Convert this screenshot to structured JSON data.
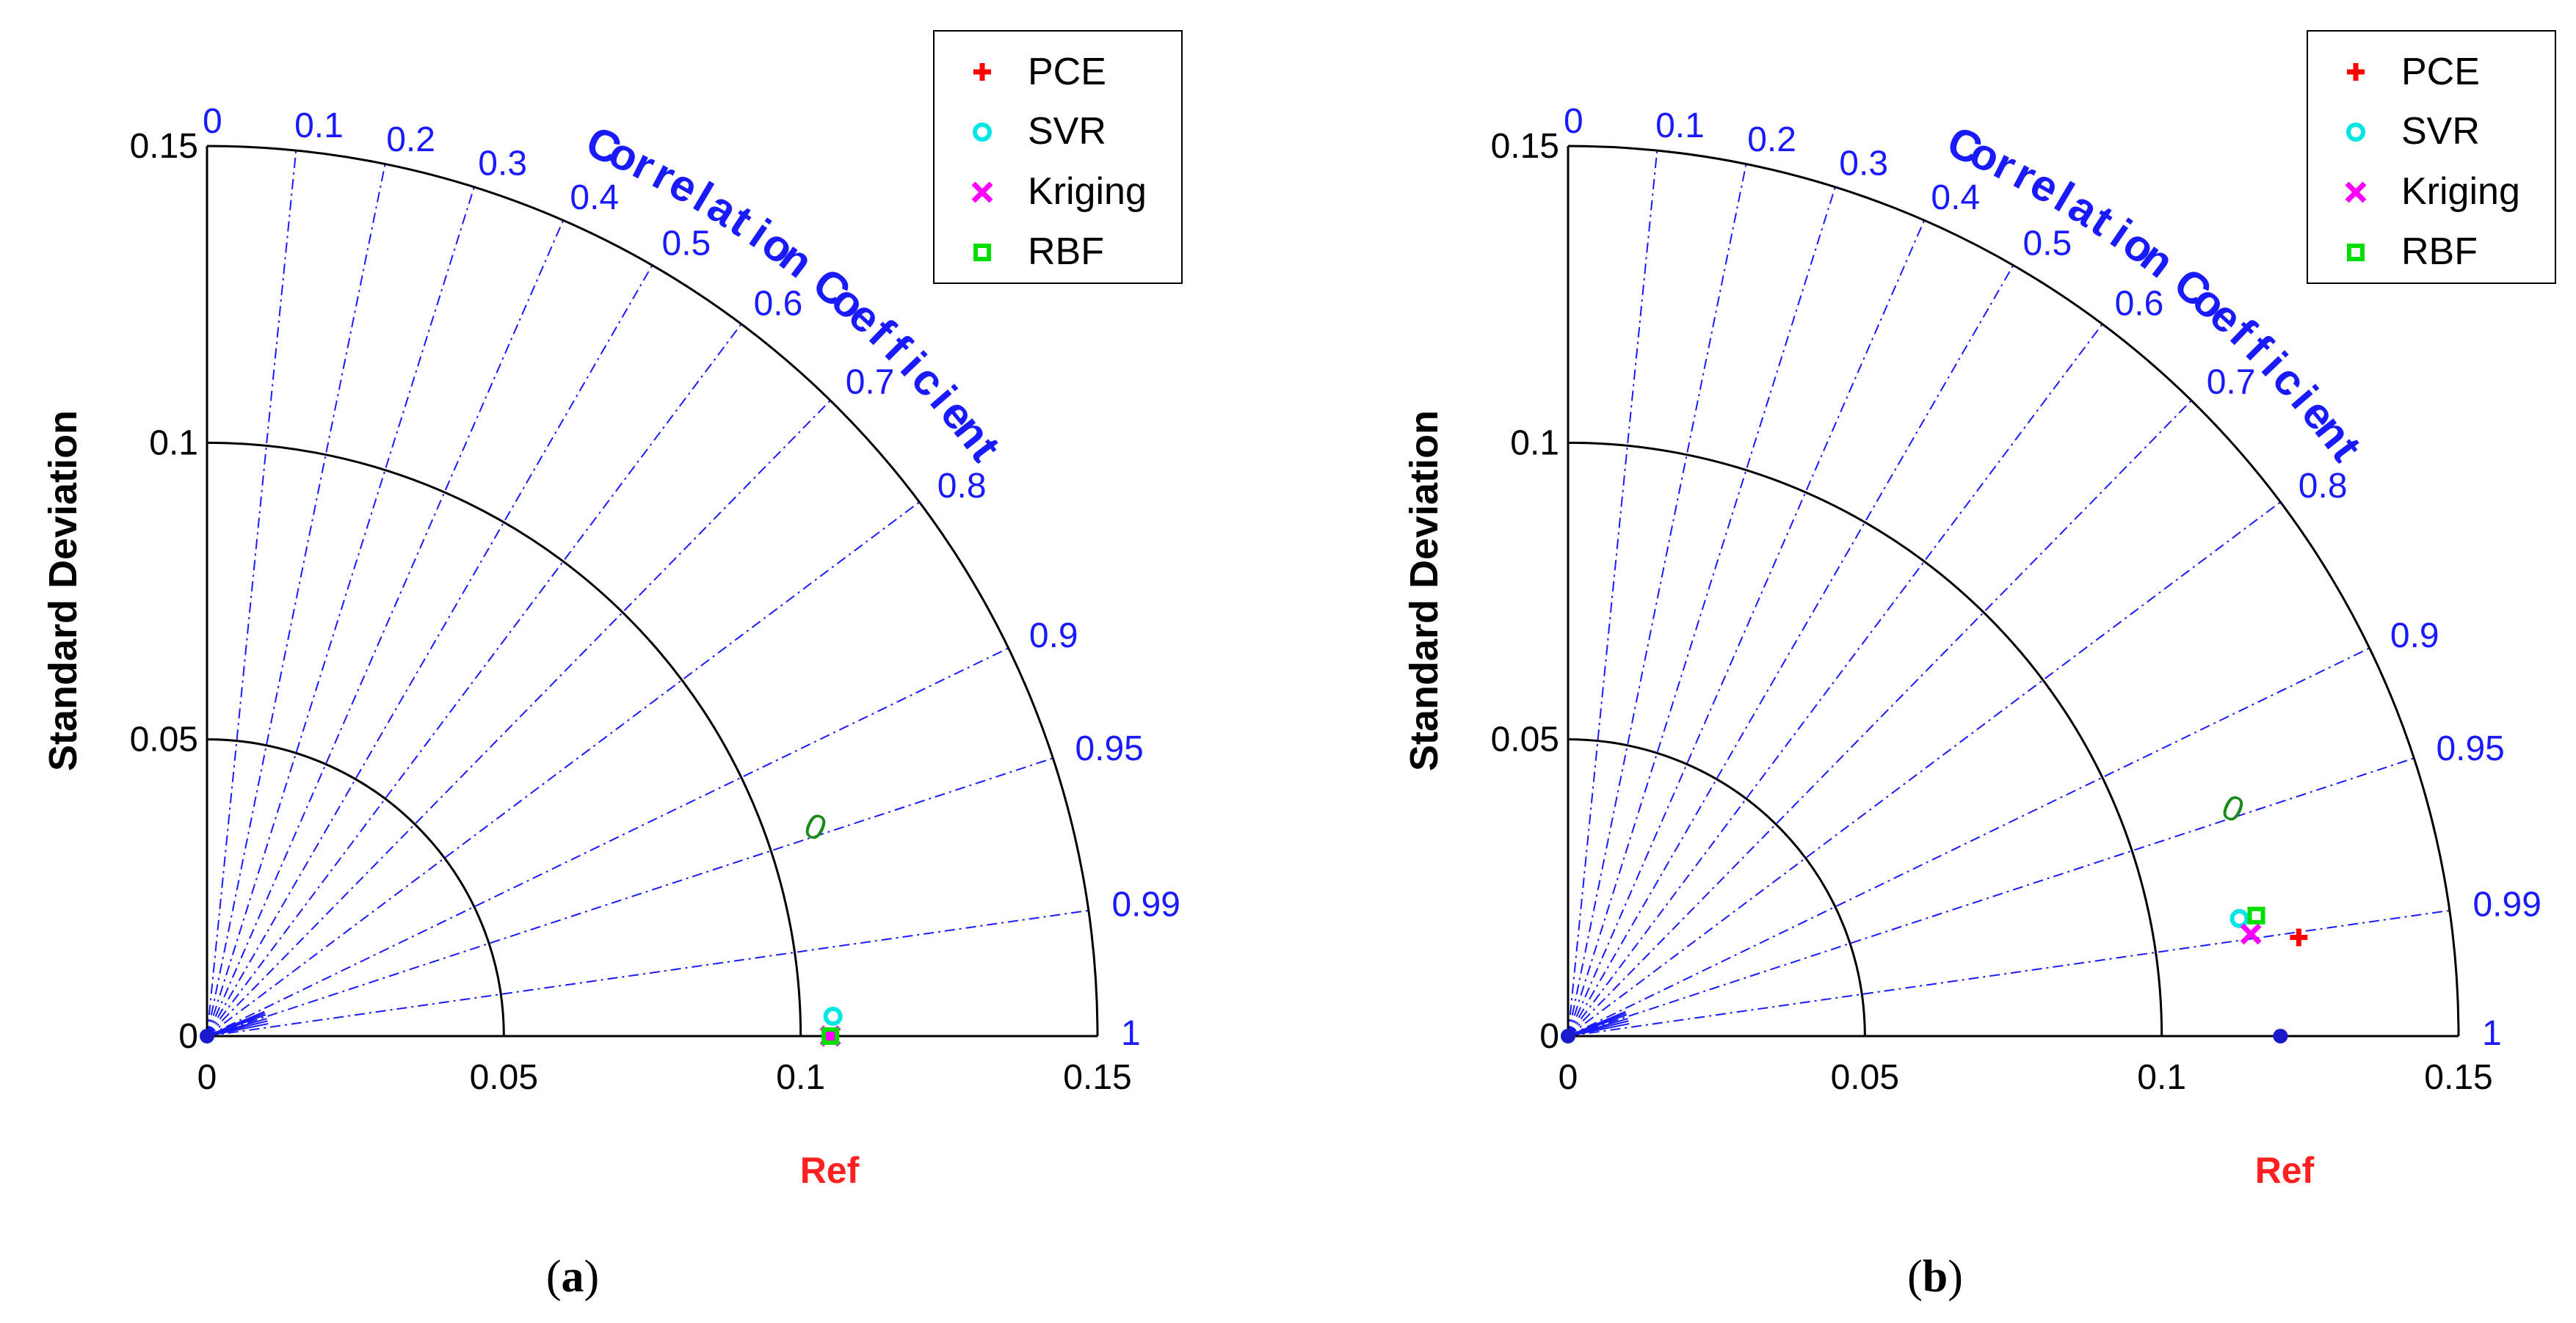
{
  "colors": {
    "correlation": "#1a1aff",
    "ref": "#ff2020",
    "ref_point": "#1a1acc",
    "contour": "#1a8a1a",
    "PCE": "#ff0000",
    "SVR": "#00e5e5",
    "Kriging": "#ff00ff",
    "RBF": "#00dd00"
  },
  "chart_data": [
    {
      "type": "scatter",
      "subtype": "taylor-diagram",
      "panel_label": "(a)",
      "panel_letter": "a",
      "title": "",
      "xlabel": "Ref",
      "ylabel": "Standard Deviation",
      "correlation_label": "Correlation Coefficient",
      "std_max": 0.15,
      "std_ticks": [
        "0",
        "0.05",
        "0.1",
        "0.15"
      ],
      "correlation_ticks": [
        "0",
        "0.1",
        "0.2",
        "0.3",
        "0.4",
        "0.5",
        "0.6",
        "0.7",
        "0.8",
        "0.9",
        "0.95",
        "0.99",
        "1"
      ],
      "correlation_values": [
        0,
        0.1,
        0.2,
        0.3,
        0.4,
        0.5,
        0.6,
        0.7,
        0.8,
        0.9,
        0.95,
        0.99,
        1
      ],
      "std_arcs": [
        0.05,
        0.1,
        0.15
      ],
      "ref_std": 0.105,
      "contour_label": "0",
      "contour_label_position": {
        "std": 0.107,
        "corr": 0.95
      },
      "legend": {
        "placement": "top-right",
        "entries": [
          "PCE",
          "SVR",
          "Kriging",
          "RBF"
        ]
      },
      "series": [
        {
          "name": "PCE",
          "marker": "plus",
          "std": 0.105,
          "corr": 1.0
        },
        {
          "name": "SVR",
          "marker": "circle",
          "std": 0.1055,
          "corr": 0.9995
        },
        {
          "name": "Kriging",
          "marker": "x",
          "std": 0.105,
          "corr": 1.0
        },
        {
          "name": "RBF",
          "marker": "square",
          "std": 0.105,
          "corr": 1.0
        }
      ]
    },
    {
      "type": "scatter",
      "subtype": "taylor-diagram",
      "panel_label": "(b)",
      "panel_letter": "b",
      "title": "",
      "xlabel": "Ref",
      "ylabel": "Standard Deviation",
      "correlation_label": "Correlation Coefficient",
      "std_max": 0.15,
      "std_ticks": [
        "0",
        "0.05",
        "0.1",
        "0.15"
      ],
      "correlation_ticks": [
        "0",
        "0.1",
        "0.2",
        "0.3",
        "0.4",
        "0.5",
        "0.6",
        "0.7",
        "0.8",
        "0.9",
        "0.95",
        "0.99",
        "1"
      ],
      "correlation_values": [
        0,
        0.1,
        0.2,
        0.3,
        0.4,
        0.5,
        0.6,
        0.7,
        0.8,
        0.9,
        0.95,
        0.99,
        1
      ],
      "std_arcs": [
        0.05,
        0.1,
        0.15
      ],
      "ref_std": 0.12,
      "contour_label": "0",
      "contour_label_position": {
        "std": 0.117,
        "corr": 0.95
      },
      "legend": {
        "placement": "top-right",
        "entries": [
          "PCE",
          "SVR",
          "Kriging",
          "RBF"
        ]
      },
      "series": [
        {
          "name": "PCE",
          "marker": "plus",
          "std": 0.1242,
          "corr": 0.991
        },
        {
          "name": "SVR",
          "marker": "circle",
          "std": 0.1148,
          "corr": 0.985
        },
        {
          "name": "Kriging",
          "marker": "x",
          "std": 0.1163,
          "corr": 0.989
        },
        {
          "name": "RBF",
          "marker": "square",
          "std": 0.1177,
          "corr": 0.985
        }
      ]
    }
  ]
}
